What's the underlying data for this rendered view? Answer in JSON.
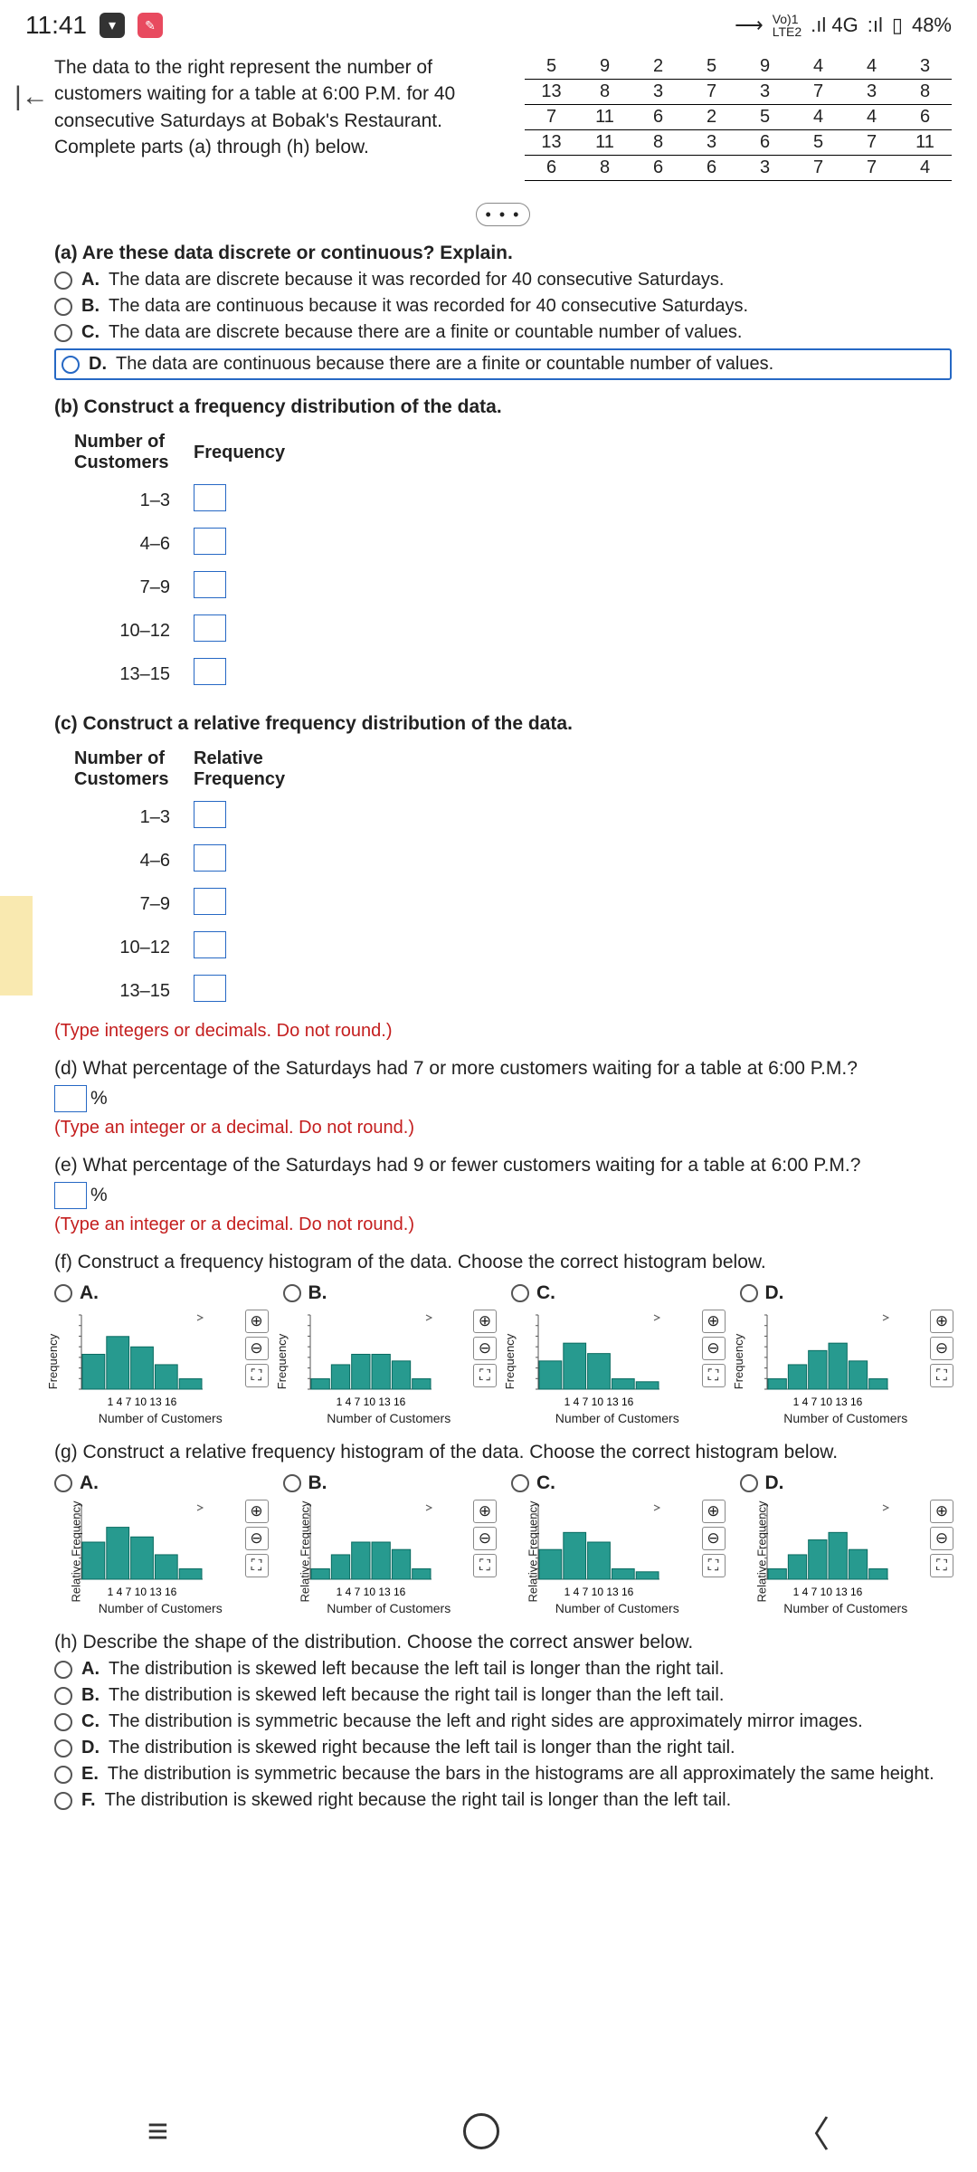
{
  "status": {
    "time": "11:41",
    "volte": "Vo)1\nLTE2",
    "net": ".ıl 4G",
    "sig": ":ıl",
    "batt": "48%"
  },
  "header": {
    "text": "The data to the right represent the number of customers waiting for a table at 6:00 P.M. for 40 consecutive Saturdays at Bobak's Restaurant. Complete parts (a) through (h) below.",
    "rows": [
      [
        "5",
        "9",
        "2",
        "5",
        "9",
        "4",
        "4",
        "3"
      ],
      [
        "13",
        "8",
        "3",
        "7",
        "3",
        "7",
        "3",
        "8"
      ],
      [
        "7",
        "11",
        "6",
        "2",
        "5",
        "4",
        "4",
        "6"
      ],
      [
        "13",
        "11",
        "8",
        "3",
        "6",
        "5",
        "7",
        "11"
      ],
      [
        "6",
        "8",
        "6",
        "6",
        "3",
        "7",
        "7",
        "4"
      ]
    ]
  },
  "a": {
    "title": "(a) Are these data discrete or continuous? Explain.",
    "opts": [
      {
        "k": "A.",
        "t": "The data are discrete because it was recorded for 40 consecutive Saturdays."
      },
      {
        "k": "B.",
        "t": "The data are continuous because it was recorded for 40 consecutive Saturdays."
      },
      {
        "k": "C.",
        "t": "The data are discrete because there are a finite or countable number of values."
      },
      {
        "k": "D.",
        "t": "The data are continuous because there are a finite or countable number of values."
      }
    ]
  },
  "b": {
    "title": "(b) Construct a frequency distribution of the data.",
    "col1": "Number of Customers",
    "col2": "Frequency",
    "rows": [
      "1–3",
      "4–6",
      "7–9",
      "10–12",
      "13–15"
    ]
  },
  "c": {
    "title": "(c) Construct a relative frequency distribution of the data.",
    "col1": "Number of Customers",
    "col2": "Relative Frequency",
    "rows": [
      "1–3",
      "4–6",
      "7–9",
      "10–12",
      "13–15"
    ],
    "note": "(Type integers or decimals. Do not round.)"
  },
  "d": {
    "title": "(d) What percentage of the Saturdays had 7 or more customers waiting for a table at 6:00 P.M.?",
    "note": "(Type an integer or a decimal. Do not round.)"
  },
  "e": {
    "title": "(e) What percentage of the Saturdays had 9 or fewer customers waiting for a table at 6:00 P.M.?",
    "note": "(Type an integer or a decimal. Do not round.)"
  },
  "f": {
    "title": "(f) Construct a frequency histogram of the data. Choose the correct histogram below.",
    "ylabel": "Frequency",
    "xlabel": "Number of Customers",
    "yticks": [
      "0",
      "3",
      "6",
      "9",
      "12",
      "15",
      "18",
      "21"
    ],
    "xticks": "1 4 7 10 13 16",
    "charts": [
      {
        "k": "A.",
        "bars": [
          0.47,
          0.71,
          0.57,
          0.33,
          0.14
        ]
      },
      {
        "k": "B.",
        "bars": [
          0.14,
          0.33,
          0.47,
          0.47,
          0.38,
          0.14
        ]
      },
      {
        "k": "C.",
        "bars": [
          0.38,
          0.62,
          0.48,
          0.14,
          0.1
        ]
      },
      {
        "k": "D.",
        "bars": [
          0.14,
          0.33,
          0.52,
          0.62,
          0.38,
          0.14
        ]
      }
    ]
  },
  "g": {
    "title": "(g) Construct a relative frequency histogram of the data. Choose the correct histogram below.",
    "ylabel": "Relative Frequency",
    "xlabel": "Number of Customers",
    "yticks": [
      "0",
      "0.1",
      "0.2",
      "0.3",
      "0.4",
      "0.5",
      "0.6"
    ],
    "xticks": "1 4 7 10 13 16",
    "charts": [
      {
        "k": "A.",
        "bars": [
          0.5,
          0.7,
          0.57,
          0.33,
          0.14
        ]
      },
      {
        "k": "B.",
        "bars": [
          0.14,
          0.33,
          0.5,
          0.5,
          0.4,
          0.14
        ]
      },
      {
        "k": "C.",
        "bars": [
          0.4,
          0.63,
          0.5,
          0.14,
          0.1
        ]
      },
      {
        "k": "D.",
        "bars": [
          0.14,
          0.33,
          0.53,
          0.63,
          0.4,
          0.14
        ]
      }
    ]
  },
  "h": {
    "title": "(h) Describe the shape of the distribution. Choose the correct answer below.",
    "opts": [
      {
        "k": "A.",
        "t": "The distribution is skewed left because the left tail is longer than the right tail."
      },
      {
        "k": "B.",
        "t": "The distribution is skewed left because the right tail is longer than the left tail."
      },
      {
        "k": "C.",
        "t": "The distribution is symmetric because the left and right sides are approximately mirror images."
      },
      {
        "k": "D.",
        "t": "The distribution is skewed right because the left tail is longer than the right tail."
      },
      {
        "k": "E.",
        "t": "The distribution is symmetric because the bars in the histograms are all approximately the same height."
      },
      {
        "k": "F.",
        "t": "The distribution is skewed right because the right tail is longer than the left tail."
      }
    ]
  },
  "colors": {
    "bar": "#279a8f",
    "barStroke": "#0a6b61",
    "axis": "#555"
  }
}
